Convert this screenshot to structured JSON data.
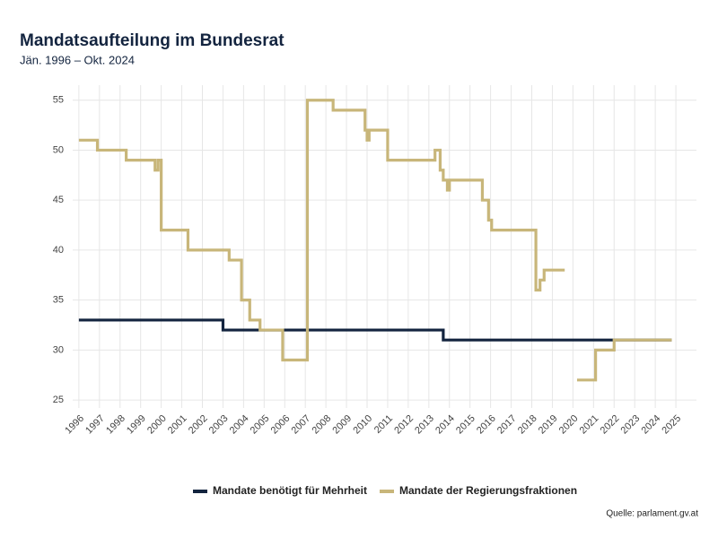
{
  "chart_data": {
    "type": "line",
    "step": "post",
    "title": "Mandatsaufteilung im Bundesrat",
    "subtitle": "Jän. 1996 – Okt. 2024",
    "source": "Quelle: parlament.gv.at",
    "xlim": [
      1995.7,
      2026.0
    ],
    "xticks": [
      1996,
      1997,
      1998,
      1999,
      2000,
      2001,
      2002,
      2003,
      2004,
      2005,
      2006,
      2007,
      2008,
      2009,
      2010,
      2011,
      2012,
      2013,
      2014,
      2015,
      2016,
      2017,
      2018,
      2019,
      2020,
      2021,
      2022,
      2023,
      2024,
      2025
    ],
    "ylim": [
      24.2,
      56.5
    ],
    "yticks": [
      25,
      30,
      35,
      40,
      45,
      50,
      55
    ],
    "grid": true,
    "legend": "bottom",
    "series": [
      {
        "name": "Mandate benötigt für Mehrheit",
        "color": "#13243f",
        "x": [
          1996,
          2003.0,
          2013.7,
          2024.8
        ],
        "values": [
          33,
          32,
          31,
          31
        ]
      },
      {
        "name": "Mandate der Regierungsfraktionen",
        "color": "#c8b67a",
        "x": [
          1996,
          1996.9,
          1998.3,
          1999.7,
          1999.85,
          2000.0,
          2001.3,
          2003.3,
          2003.9,
          2004.3,
          2004.8,
          2005.9,
          2007.1,
          2008.35,
          2009.9,
          2010.0,
          2010.1,
          2011.0,
          2013.3,
          2013.55,
          2013.7,
          2013.9,
          2014.0,
          2015.6,
          2015.9,
          2016.05,
          2018.2,
          2018.4,
          2018.6,
          2019.6,
          2020.2,
          2021.1,
          2022.0,
          2024.8
        ],
        "values": [
          51,
          50,
          49,
          48,
          49,
          42,
          40,
          39,
          35,
          33,
          32,
          29,
          55,
          54,
          52,
          51,
          52,
          49,
          50,
          48,
          47,
          46,
          47,
          45,
          43,
          42,
          36,
          37,
          38,
          null,
          27,
          30,
          31,
          31
        ]
      }
    ]
  }
}
